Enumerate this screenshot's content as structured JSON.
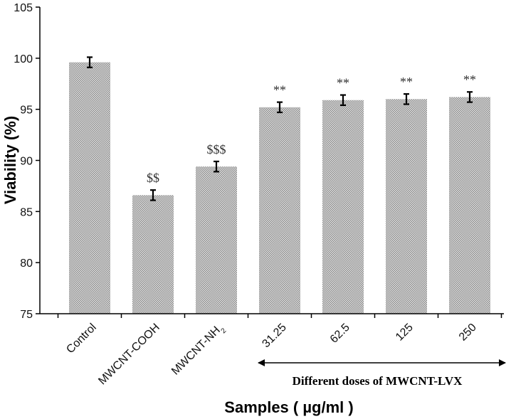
{
  "chart_data": {
    "type": "bar",
    "title": "",
    "xlabel": "Samples ( µg/ml )",
    "ylabel": "Viability (%)",
    "ylim": [
      75,
      105
    ],
    "yticks": [
      75,
      80,
      85,
      90,
      95,
      100,
      105
    ],
    "grid": false,
    "categories": [
      {
        "name": "Control",
        "base": "Control",
        "sub": ""
      },
      {
        "name": "MWCNT-COOH",
        "base": "MWCNT-COOH",
        "sub": ""
      },
      {
        "name": "MWCNT-NH2",
        "base": "MWCNT-NH",
        "sub": "2"
      },
      {
        "name": "31.25",
        "base": "31.25",
        "sub": ""
      },
      {
        "name": "62.5",
        "base": "62.5",
        "sub": ""
      },
      {
        "name": "125",
        "base": "125",
        "sub": ""
      },
      {
        "name": "250",
        "base": "250",
        "sub": ""
      }
    ],
    "values": [
      99.6,
      86.6,
      89.4,
      95.2,
      95.9,
      96.0,
      96.2
    ],
    "errors": [
      0.5,
      0.5,
      0.5,
      0.5,
      0.5,
      0.5,
      0.5
    ],
    "annotations": [
      "",
      "$$",
      "$$$",
      "**",
      "**",
      "**",
      "**"
    ],
    "group_label": "Different doses of MWCNT-LVX",
    "group_span": [
      "31.25",
      "250"
    ]
  }
}
